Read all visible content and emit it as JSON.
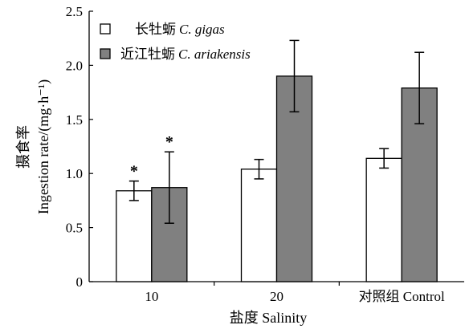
{
  "chart_data": {
    "type": "bar",
    "categories": [
      "10",
      "20",
      "对照组 Control"
    ],
    "series": [
      {
        "name_cn": "长牡蛎",
        "name_latin": "C. gigas",
        "values": [
          0.84,
          1.04,
          1.14
        ],
        "errors": [
          0.09,
          0.09,
          0.09
        ],
        "color": "#ffffff",
        "significance": [
          "*",
          "",
          ""
        ]
      },
      {
        "name_cn": "近江牡蛎",
        "name_latin": "C. ariakensis",
        "values": [
          0.87,
          1.9,
          1.79
        ],
        "errors": [
          0.33,
          0.33,
          0.33
        ],
        "color": "#808080",
        "significance": [
          "*",
          "",
          ""
        ]
      }
    ],
    "ylim": [
      0,
      2.5
    ],
    "yticks": [
      "0",
      "0.5",
      "1.0",
      "1.5",
      "2.0",
      "2.5"
    ],
    "ylabel_cn": "摄食率",
    "ylabel_en": "Ingestion rate/(mg·h⁻¹)",
    "xlabel": "盐度 Salinity",
    "grid": false,
    "legend": "top-left"
  }
}
